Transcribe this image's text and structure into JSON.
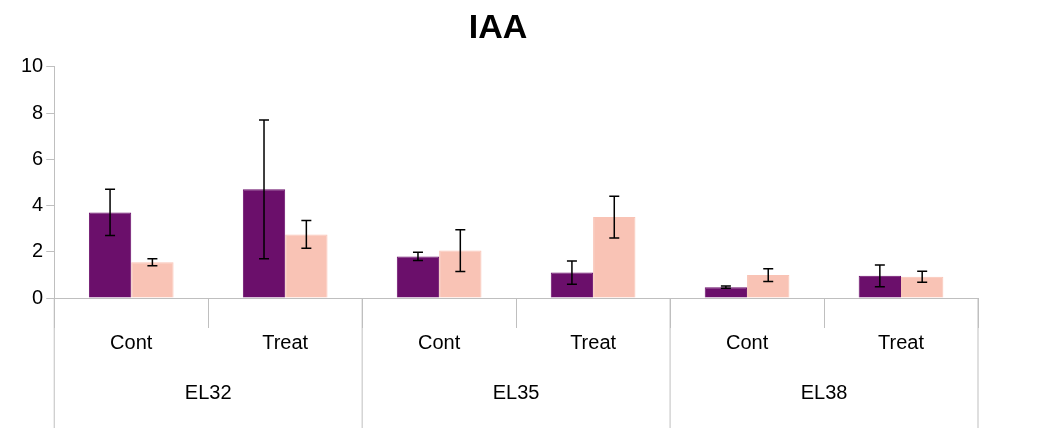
{
  "chart_data": {
    "type": "bar",
    "title": "IAA",
    "categories": [
      "Cont",
      "Treat",
      "Cont",
      "Treat",
      "Cont",
      "Treat"
    ],
    "series": [
      {
        "color": "#6b0f6b",
        "values": [
          3.7,
          4.7,
          1.8,
          1.1,
          0.47,
          0.96
        ],
        "errors": [
          1.0,
          3.0,
          0.18,
          0.5,
          0.05,
          0.47
        ]
      },
      {
        "color": "#f9c3b5",
        "values": [
          1.55,
          2.75,
          2.05,
          3.5,
          0.99,
          0.92
        ],
        "errors": [
          0.15,
          0.6,
          0.9,
          0.9,
          0.28,
          0.24
        ]
      }
    ],
    "annotations": [
      "EL32",
      "EL35",
      "EL38"
    ],
    "ylim": [
      0,
      10
    ],
    "yticks": [
      0,
      2,
      4,
      6,
      8,
      10
    ],
    "grid": false,
    "legend": false
  }
}
